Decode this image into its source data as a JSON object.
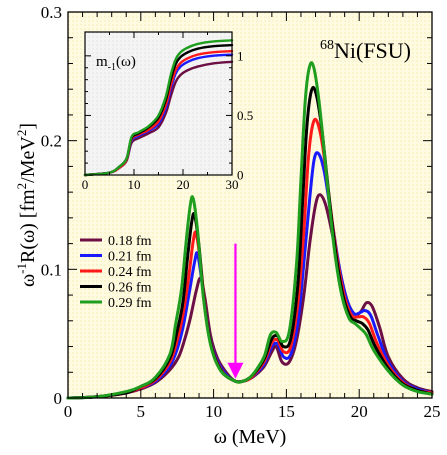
{
  "chart_data": [
    {
      "type": "line",
      "annotation_nucleus": "68",
      "annotation_model": "Ni(FSU)",
      "xlabel": "ω (MeV)",
      "ylabel_main": "ω",
      "ylabel_sup": "-1",
      "ylabel_rest": "R(ω) [fm",
      "ylabel_sup2": "2",
      "ylabel_end": "/MeV",
      "ylabel_sup3": "2",
      "ylabel_close": "]",
      "xlim": [
        0,
        25
      ],
      "ylim": [
        0,
        0.3
      ],
      "xticks": [
        0,
        5,
        10,
        15,
        20,
        25
      ],
      "xtick_labels": [
        "0",
        "5",
        "10",
        "15",
        "20",
        "25"
      ],
      "yticks": [
        0,
        0.1,
        0.2,
        0.3
      ],
      "ytick_labels": [
        "0",
        "0.1",
        "0.2",
        "0.3"
      ],
      "background": "#fffbe0",
      "legend_placement": "left",
      "arrow": {
        "x": 11.5,
        "y_from": 0.12,
        "y_to": 0.015,
        "color": "#ff00ff"
      },
      "series": [
        {
          "name": "0.18 fm",
          "color": "#6b0f45",
          "x": [
            0,
            2,
            4,
            5,
            6,
            7,
            7.6,
            8.0,
            8.4,
            8.8,
            9.1,
            9.4,
            9.8,
            10.3,
            11,
            11.5,
            12,
            12.5,
            13,
            13.5,
            14.0,
            14.3,
            14.7,
            15.2,
            15.7,
            16.2,
            16.6,
            17.0,
            17.3,
            17.7,
            18.2,
            18.7,
            19.2,
            19.7,
            20.1,
            20.5,
            20.9,
            21.4,
            22,
            23,
            24,
            25
          ],
          "y": [
            0,
            0.001,
            0.004,
            0.007,
            0.012,
            0.022,
            0.032,
            0.045,
            0.062,
            0.083,
            0.093,
            0.078,
            0.048,
            0.03,
            0.018,
            0.013,
            0.013,
            0.015,
            0.019,
            0.025,
            0.036,
            0.04,
            0.028,
            0.028,
            0.045,
            0.08,
            0.12,
            0.15,
            0.158,
            0.15,
            0.125,
            0.097,
            0.075,
            0.065,
            0.067,
            0.074,
            0.071,
            0.055,
            0.032,
            0.015,
            0.008,
            0.005
          ]
        },
        {
          "name": "0.21 fm",
          "color": "#1a1aff",
          "x": [
            0,
            2,
            4,
            5,
            6,
            7,
            7.5,
            7.9,
            8.3,
            8.7,
            8.9,
            9.2,
            9.6,
            10.1,
            10.8,
            11.5,
            12,
            12.5,
            13,
            13.5,
            14.0,
            14.4,
            14.8,
            15.3,
            15.8,
            16.2,
            16.6,
            16.9,
            17.2,
            17.6,
            18.1,
            18.6,
            19.1,
            19.6,
            20.0,
            20.4,
            20.8,
            21.3,
            22,
            23,
            24,
            25
          ],
          "y": [
            0,
            0.001,
            0.004,
            0.008,
            0.013,
            0.025,
            0.038,
            0.055,
            0.08,
            0.106,
            0.112,
            0.09,
            0.055,
            0.033,
            0.019,
            0.013,
            0.013,
            0.015,
            0.02,
            0.027,
            0.04,
            0.042,
            0.032,
            0.034,
            0.06,
            0.105,
            0.155,
            0.185,
            0.19,
            0.176,
            0.14,
            0.104,
            0.078,
            0.066,
            0.066,
            0.068,
            0.064,
            0.048,
            0.028,
            0.013,
            0.007,
            0.004
          ]
        },
        {
          "name": "0.24 fm",
          "color": "#ff1a1a",
          "x": [
            0,
            2,
            4,
            5,
            6,
            7,
            7.5,
            7.9,
            8.3,
            8.6,
            8.8,
            9.1,
            9.5,
            10.0,
            10.7,
            11.5,
            12,
            12.5,
            13,
            13.5,
            14.0,
            14.4,
            14.8,
            15.3,
            15.8,
            16.2,
            16.5,
            16.8,
            17.1,
            17.5,
            18.0,
            18.5,
            19.0,
            19.5,
            19.9,
            20.3,
            20.7,
            21.2,
            22,
            23,
            24,
            25
          ],
          "y": [
            0,
            0.001,
            0.004,
            0.008,
            0.014,
            0.028,
            0.045,
            0.065,
            0.095,
            0.122,
            0.128,
            0.105,
            0.062,
            0.035,
            0.019,
            0.013,
            0.013,
            0.015,
            0.021,
            0.029,
            0.043,
            0.045,
            0.036,
            0.04,
            0.075,
            0.13,
            0.185,
            0.212,
            0.215,
            0.195,
            0.15,
            0.108,
            0.078,
            0.064,
            0.063,
            0.063,
            0.058,
            0.043,
            0.025,
            0.012,
            0.006,
            0.004
          ]
        },
        {
          "name": "0.26 fm",
          "color": "#000000",
          "x": [
            0,
            2,
            4,
            5,
            6,
            7,
            7.5,
            7.9,
            8.2,
            8.5,
            8.7,
            9.0,
            9.4,
            9.9,
            10.6,
            11.5,
            12,
            12.5,
            13,
            13.5,
            14.0,
            14.4,
            14.8,
            15.3,
            15.8,
            16.1,
            16.4,
            16.7,
            17.0,
            17.4,
            17.9,
            18.4,
            18.9,
            19.4,
            19.8,
            20.2,
            20.6,
            21.1,
            22,
            23,
            24,
            25
          ],
          "y": [
            0,
            0.001,
            0.004,
            0.009,
            0.015,
            0.031,
            0.052,
            0.075,
            0.108,
            0.137,
            0.142,
            0.118,
            0.07,
            0.038,
            0.02,
            0.013,
            0.013,
            0.016,
            0.022,
            0.031,
            0.046,
            0.048,
            0.04,
            0.046,
            0.09,
            0.15,
            0.21,
            0.238,
            0.238,
            0.212,
            0.16,
            0.112,
            0.079,
            0.063,
            0.06,
            0.058,
            0.053,
            0.04,
            0.023,
            0.011,
            0.006,
            0.003
          ]
        },
        {
          "name": "0.29 fm",
          "color": "#1f9e1f",
          "x": [
            0,
            2,
            4,
            5,
            6,
            7,
            7.4,
            7.8,
            8.1,
            8.4,
            8.6,
            8.9,
            9.3,
            9.8,
            10.5,
            11.5,
            12,
            12.5,
            13,
            13.5,
            13.9,
            14.3,
            14.7,
            15.2,
            15.7,
            16.0,
            16.3,
            16.6,
            16.9,
            17.3,
            17.8,
            18.3,
            18.8,
            19.3,
            19.7,
            20.1,
            20.5,
            21.0,
            22,
            23,
            24,
            25
          ],
          "y": [
            0,
            0.001,
            0.005,
            0.009,
            0.016,
            0.034,
            0.058,
            0.085,
            0.12,
            0.15,
            0.155,
            0.13,
            0.078,
            0.041,
            0.021,
            0.013,
            0.013,
            0.016,
            0.023,
            0.033,
            0.049,
            0.051,
            0.044,
            0.052,
            0.105,
            0.17,
            0.232,
            0.258,
            0.256,
            0.225,
            0.168,
            0.115,
            0.08,
            0.062,
            0.058,
            0.054,
            0.049,
            0.037,
            0.021,
            0.01,
            0.005,
            0.003
          ]
        }
      ]
    },
    {
      "type": "line",
      "title": "m",
      "title_sub": "-1",
      "title_rest": "(ω)",
      "xlim": [
        0,
        30
      ],
      "ylim": [
        0,
        1.2
      ],
      "xticks": [
        0,
        10,
        20,
        30
      ],
      "xtick_labels": [
        "0",
        "10",
        "20",
        "30"
      ],
      "yticks": [
        0,
        0.5,
        1
      ],
      "ytick_labels": [
        "0",
        "0.5",
        "1"
      ],
      "background": "#f0f0f0",
      "series": [
        {
          "name": "0.18 fm",
          "color": "#6b0f45",
          "x": [
            0,
            5,
            7,
            8.5,
            9.5,
            11,
            13,
            15,
            16.5,
            17.5,
            18.5,
            19.5,
            21,
            23,
            26,
            30
          ],
          "y": [
            0,
            0.02,
            0.06,
            0.12,
            0.27,
            0.31,
            0.35,
            0.4,
            0.52,
            0.66,
            0.78,
            0.84,
            0.88,
            0.91,
            0.935,
            0.95
          ]
        },
        {
          "name": "0.21 fm",
          "color": "#1a1aff",
          "x": [
            0,
            5,
            7,
            8.5,
            9.5,
            11,
            13,
            15,
            16.5,
            17.5,
            18.5,
            19.5,
            21,
            23,
            26,
            30
          ],
          "y": [
            0,
            0.02,
            0.06,
            0.13,
            0.29,
            0.33,
            0.37,
            0.43,
            0.56,
            0.72,
            0.85,
            0.91,
            0.95,
            0.98,
            1.0,
            1.01
          ]
        },
        {
          "name": "0.24 fm",
          "color": "#ff1a1a",
          "x": [
            0,
            5,
            7,
            8.5,
            9.5,
            11,
            13,
            15,
            16.5,
            17.5,
            18.5,
            19.5,
            21,
            23,
            26,
            30
          ],
          "y": [
            0,
            0.02,
            0.06,
            0.13,
            0.3,
            0.34,
            0.38,
            0.45,
            0.59,
            0.75,
            0.88,
            0.94,
            0.98,
            1.01,
            1.03,
            1.04
          ]
        },
        {
          "name": "0.26 fm",
          "color": "#000000",
          "x": [
            0,
            5,
            7,
            8.5,
            9.5,
            11,
            13,
            15,
            16.5,
            17.5,
            18.5,
            19.5,
            21,
            23,
            26,
            30
          ],
          "y": [
            0,
            0.02,
            0.07,
            0.14,
            0.31,
            0.35,
            0.4,
            0.48,
            0.63,
            0.8,
            0.93,
            0.99,
            1.03,
            1.06,
            1.08,
            1.09
          ]
        },
        {
          "name": "0.29 fm",
          "color": "#1f9e1f",
          "x": [
            0,
            5,
            7,
            8.5,
            9.5,
            11,
            13,
            15,
            16.5,
            17.5,
            18.5,
            19.5,
            21,
            23,
            26,
            30
          ],
          "y": [
            0,
            0.02,
            0.07,
            0.14,
            0.32,
            0.36,
            0.41,
            0.5,
            0.66,
            0.84,
            0.97,
            1.03,
            1.07,
            1.1,
            1.12,
            1.13
          ]
        }
      ]
    }
  ]
}
